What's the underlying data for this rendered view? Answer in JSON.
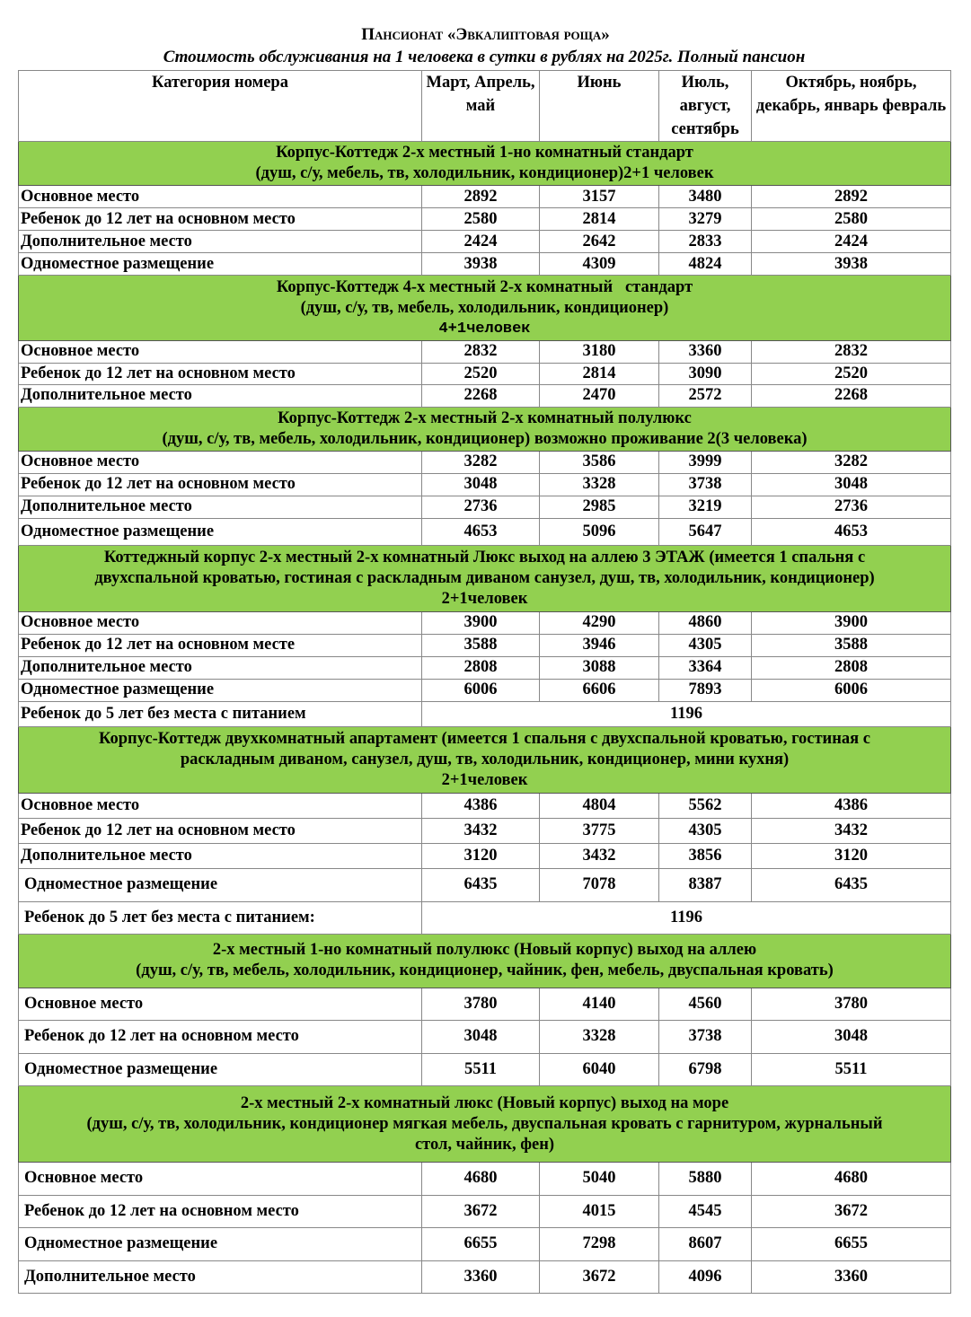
{
  "title": "Пансионат «Эвкалиптовая роща»",
  "subtitle": "Стоимость обслуживания на 1 человека в сутки в рублях на 2025г. Полный пансион",
  "colors": {
    "section_bg": "#92d050"
  },
  "headers": [
    "Категория номера",
    "Март, Апрель, май",
    "Июнь",
    "Июль, август, сентябрь",
    "Октябрь, ноябрь, декабрь, январь февраль"
  ],
  "sections": [
    {
      "title_lines": [
        "Корпус-Коттедж 2-х местный 1-но комнатный стандарт",
        "(душ, с/у, мебель, тв, холодильник, кондиционер)2+1 человек"
      ],
      "rows": [
        {
          "label": "Основное место",
          "values": [
            "2892",
            "3157",
            "3480",
            "2892"
          ]
        },
        {
          "label": "Ребенок до 12 лет на основном место",
          "values": [
            "2580",
            "2814",
            "3279",
            "2580"
          ]
        },
        {
          "label": "Дополнительное место",
          "values": [
            "2424",
            "2642",
            "2833",
            "2424"
          ]
        },
        {
          "label": "Одноместное размещение",
          "values": [
            "3938",
            "4309",
            "4824",
            "3938"
          ]
        }
      ]
    },
    {
      "title_lines": [
        "Корпус-Коттедж 4-х местный 2-х комнатный   стандарт",
        "(душ, с/у, тв, мебель, холодильник, кондиционер)",
        "4+1человек"
      ],
      "rows": [
        {
          "label": "Основное место",
          "values": [
            "2832",
            "3180",
            "3360",
            "2832"
          ]
        },
        {
          "label": "Ребенок до 12 лет на основном место",
          "values": [
            "2520",
            "2814",
            "3090",
            "2520"
          ]
        },
        {
          "label": "Дополнительное место",
          "values": [
            "2268",
            "2470",
            "2572",
            "2268"
          ]
        }
      ]
    },
    {
      "title_lines": [
        "Корпус-Коттедж 2-х местный 2-х комнатный полулюкс",
        "(душ, с/у, тв, мебель, холодильник, кондиционер) возможно проживание 2(3 человека)"
      ],
      "rows": [
        {
          "label": "Основное место",
          "values": [
            "3282",
            "3586",
            "3999",
            "3282"
          ]
        },
        {
          "label": "Ребенок до 12 лет на основном место",
          "values": [
            "3048",
            "3328",
            "3738",
            "3048"
          ]
        },
        {
          "label": "Дополнительное место",
          "values": [
            "2736",
            "2985",
            "3219",
            "2736"
          ]
        },
        {
          "label": "Одноместное размещение",
          "values": [
            "4653",
            "5096",
            "5647",
            "4653"
          ]
        }
      ]
    },
    {
      "title_lines": [
        "Коттеджный корпус 2-х местный 2-х комнатный Люкс выход на аллею 3 ЭТАЖ (имеется 1 спальня с",
        "двухспальной кроватью, гостиная с раскладным диваном санузел, душ, тв, холодильник, кондиционер)",
        "2+1человек"
      ],
      "rows": [
        {
          "label": "Основное место",
          "values": [
            "3900",
            "4290",
            "4860",
            "3900"
          ]
        },
        {
          "label": "Ребенок до 12 лет на основном месте",
          "values": [
            "3588",
            "3946",
            "4305",
            "3588"
          ]
        },
        {
          "label": "Дополнительное место",
          "values": [
            "2808",
            "3088",
            "3364",
            "2808"
          ]
        },
        {
          "label": "Одноместное размещение",
          "values": [
            "6006",
            "6606",
            "7893",
            "6006"
          ]
        },
        {
          "label": "Ребенок до 5 лет без места с питанием",
          "merged": "1196"
        }
      ]
    },
    {
      "title_lines": [
        "Корпус-Коттедж двухкомнатный апартамент (имеется 1 спальня с двухспальной кроватью, гостиная с",
        "раскладным диваном, санузел, душ, тв, холодильник, кондиционер, мини кухня)",
        "2+1человек"
      ],
      "rows": [
        {
          "label": "Основное место",
          "values": [
            "4386",
            "4804",
            "5562",
            "4386"
          ]
        },
        {
          "label": "Ребенок до 12 лет на основном место",
          "values": [
            "3432",
            "3775",
            "4305",
            "3432"
          ]
        },
        {
          "label": "Дополнительное место",
          "values": [
            "3120",
            "3432",
            "3856",
            "3120"
          ]
        },
        {
          "label": "Одноместное размещение",
          "values": [
            "6435",
            "7078",
            "8387",
            "6435"
          ]
        },
        {
          "label": "Ребенок до 5 лет без места с питанием:",
          "merged": "1196"
        }
      ]
    },
    {
      "title_lines": [
        "2-х местный 1-но комнатный полулюкс (Новый корпус) выход на аллею",
        "(душ, с/у, тв, мебель, холодильник, кондиционер, чайник, фен, мебель, двуспальная кровать)"
      ],
      "rows": [
        {
          "label": "Основное место",
          "values": [
            "3780",
            "4140",
            "4560",
            "3780"
          ]
        },
        {
          "label": "Ребенок до 12 лет на основном место",
          "values": [
            "3048",
            "3328",
            "3738",
            "3048"
          ]
        },
        {
          "label": "Одноместное размещение",
          "values": [
            "5511",
            "6040",
            "6798",
            "5511"
          ]
        }
      ]
    },
    {
      "title_lines": [
        "2-х местный 2-х комнатный люкс (Новый корпус) выход на море",
        "(душ, с/у, тв, холодильник, кондиционер мягкая мебель, двуспальная кровать с гарнитуром, журнальный",
        "стол, чайник, фен)"
      ],
      "rows": [
        {
          "label": "Основное место",
          "values": [
            "4680",
            "5040",
            "5880",
            "4680"
          ]
        },
        {
          "label": "Ребенок до 12 лет на основном место",
          "values": [
            "3672",
            "4015",
            "4545",
            "3672"
          ]
        },
        {
          "label": "Одноместное размещение",
          "values": [
            "6655",
            "7298",
            "8607",
            "6655"
          ]
        },
        {
          "label": "Дополнительное место",
          "values": [
            "3360",
            "3672",
            "4096",
            "3360"
          ]
        }
      ]
    }
  ]
}
